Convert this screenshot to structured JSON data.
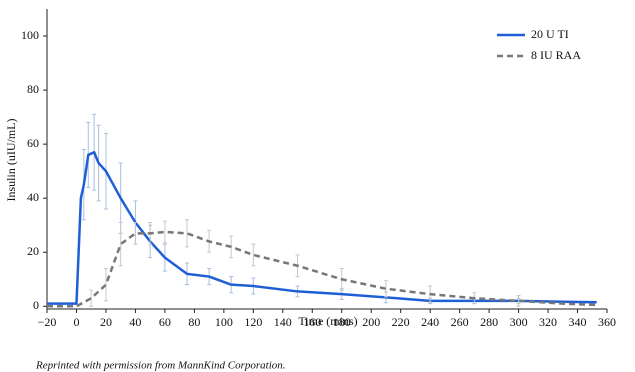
{
  "chart_data": {
    "type": "line",
    "x_label": "Time (mins)",
    "y_label": "Insulin (uIU/mL)",
    "caption": "Reprinted with permission from MannKind Corporation.",
    "xlim": [
      -20,
      360
    ],
    "xticks": [
      {
        "value": -20,
        "label": "−20"
      },
      0,
      20,
      40,
      60,
      80,
      100,
      120,
      140,
      160,
      180,
      200,
      220,
      240,
      260,
      280,
      300,
      320,
      340,
      360
    ],
    "ylim": [
      -1,
      110
    ],
    "yticks": [
      0,
      20,
      40,
      60,
      80,
      100
    ],
    "legend": "upper right",
    "series": [
      {
        "name": "20 U TI",
        "color": "#1f5fd6",
        "dash": false,
        "error_color": "#a9bfe0",
        "x": [
          -20,
          0,
          3,
          5,
          8,
          12,
          15,
          20,
          30,
          40,
          50,
          60,
          75,
          90,
          105,
          120,
          150,
          180,
          210,
          240,
          270,
          300,
          330,
          353
        ],
        "values": [
          1,
          1,
          40,
          45,
          56,
          57,
          53,
          50,
          40,
          31,
          24,
          18,
          12,
          11,
          8,
          7.5,
          5.5,
          4.5,
          3.3,
          2,
          2,
          2,
          1.7,
          1.5
        ],
        "errors": [
          null,
          null,
          null,
          13,
          12,
          14,
          14,
          14,
          13,
          8,
          6,
          5,
          4,
          3,
          3,
          3,
          2,
          2,
          2,
          1,
          1,
          1,
          null,
          null
        ]
      },
      {
        "name": "8 IU RAA",
        "color": "#777777",
        "dash": true,
        "error_color": "#c8c8c8",
        "x": [
          -20,
          0,
          10,
          20,
          30,
          40,
          50,
          60,
          75,
          90,
          105,
          120,
          150,
          180,
          210,
          240,
          270,
          300,
          330,
          353
        ],
        "values": [
          0,
          0,
          3,
          8,
          23,
          27,
          27,
          27.5,
          27,
          24,
          22,
          19,
          15,
          10,
          6.5,
          4.5,
          3,
          2,
          1,
          0.5
        ],
        "errors": [
          null,
          null,
          3,
          6,
          8,
          4,
          4,
          4,
          5,
          4,
          4,
          4,
          4,
          4,
          3,
          3,
          2,
          2,
          null,
          null
        ]
      }
    ]
  }
}
